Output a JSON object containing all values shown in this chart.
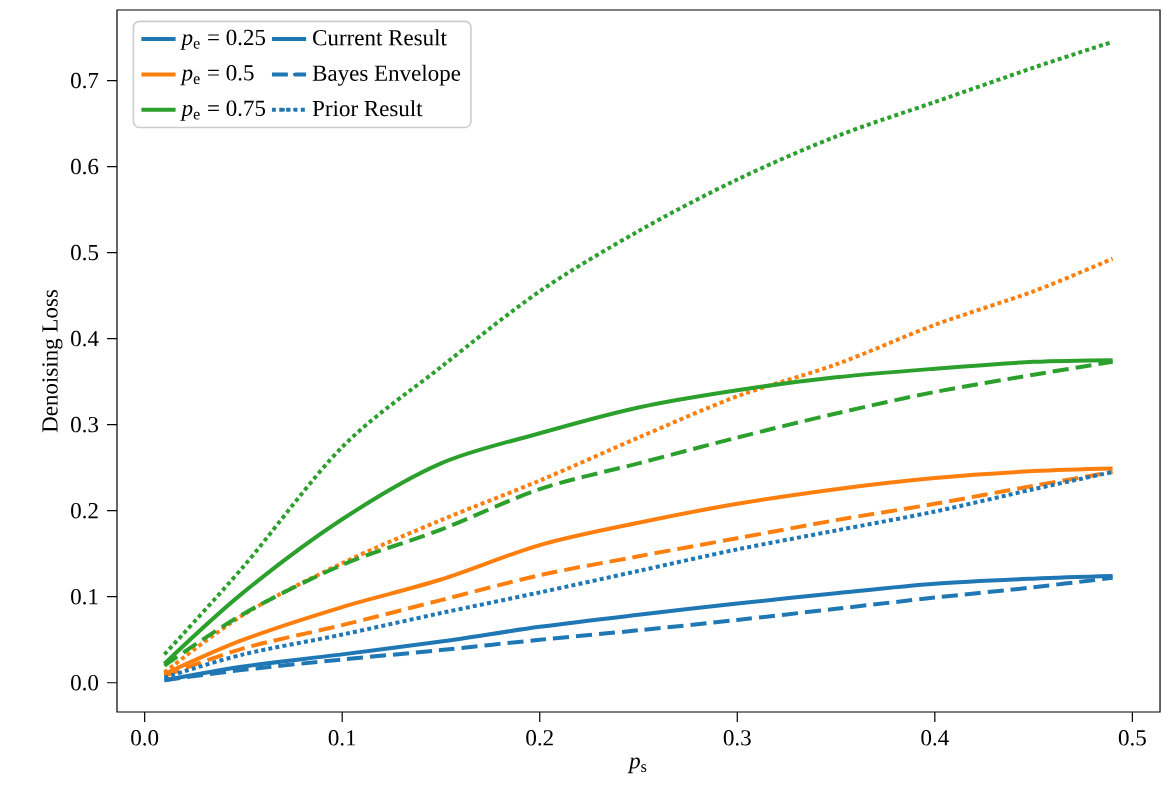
{
  "chart_data": {
    "type": "line",
    "xlabel": "*p*$_{s}$",
    "ylabel": "Denoising Loss",
    "x": [
      0.01,
      0.05,
      0.1,
      0.15,
      0.2,
      0.25,
      0.3,
      0.35,
      0.4,
      0.45,
      0.49
    ],
    "xlim": [
      -0.014,
      0.514
    ],
    "ylim": [
      -0.034,
      0.782
    ],
    "xticks": [
      {
        "value": 0,
        "label": "0.0"
      },
      0.1,
      0.2,
      0.3,
      0.4,
      0.5
    ],
    "yticks": [
      {
        "value": 0,
        "label": "0.0"
      },
      0.1,
      0.2,
      0.3,
      0.4,
      0.5,
      0.6,
      0.7
    ],
    "grid": false,
    "legend": "top left",
    "marker": "none",
    "annotations": [
      "Current Result"
    ],
    "series": [
      {
        "name": "*p*$_{e}$ = 0.25",
        "color": "#1f77b4",
        "line_style": "solid",
        "values": [
          0.003,
          0.019,
          0.033,
          0.048,
          0.065,
          0.079,
          0.092,
          0.104,
          0.115,
          0.121,
          0.124
        ]
      },
      {
        "name": "Bayes Envelope",
        "color": "#1f77b4",
        "line_style": "dashed",
        "values": [
          0.003,
          0.015,
          0.027,
          0.038,
          0.05,
          0.061,
          0.073,
          0.086,
          0.099,
          0.111,
          0.122
        ]
      },
      {
        "name": "Prior Result",
        "color": "#1f77b4",
        "line_style": "dotted",
        "values": [
          0.006,
          0.033,
          0.056,
          0.081,
          0.105,
          0.13,
          0.155,
          0.177,
          0.199,
          0.225,
          0.245
        ]
      },
      {
        "name": "*p*$_{e}$ = 0.5",
        "color": "#ff7f0e",
        "line_style": "solid",
        "values": [
          0.01,
          0.05,
          0.088,
          0.12,
          0.16,
          0.186,
          0.208,
          0.225,
          0.238,
          0.246,
          0.249
        ]
      },
      {
        "color": "#ff7f0e",
        "line_style": "dashed",
        "values": [
          0.008,
          0.04,
          0.067,
          0.096,
          0.125,
          0.147,
          0.168,
          0.189,
          0.208,
          0.229,
          0.245
        ]
      },
      {
        "color": "#ff7f0e",
        "line_style": "dotted",
        "values": [
          0.012,
          0.079,
          0.139,
          0.189,
          0.235,
          0.285,
          0.333,
          0.37,
          0.416,
          0.455,
          0.493
        ]
      },
      {
        "name": "*p*$_{e}$ = 0.75",
        "color": "#2ca02c",
        "line_style": "solid",
        "values": [
          0.022,
          0.105,
          0.19,
          0.255,
          0.29,
          0.32,
          0.34,
          0.355,
          0.365,
          0.373,
          0.375
        ]
      },
      {
        "color": "#2ca02c",
        "line_style": "dashed",
        "values": [
          0.02,
          0.08,
          0.137,
          0.178,
          0.225,
          0.255,
          0.285,
          0.313,
          0.338,
          0.358,
          0.373
        ]
      },
      {
        "color": "#2ca02c",
        "line_style": "dotted",
        "values": [
          0.033,
          0.135,
          0.274,
          0.367,
          0.455,
          0.525,
          0.585,
          0.635,
          0.675,
          0.715,
          0.745
        ]
      }
    ]
  }
}
